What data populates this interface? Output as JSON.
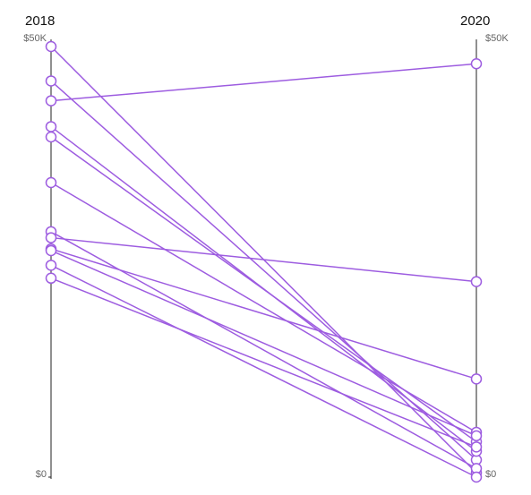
{
  "chart_data": {
    "type": "slope",
    "categories": [
      "2018",
      "2020"
    ],
    "ylim": [
      0,
      50000
    ],
    "yticks": [
      {
        "value": 0,
        "label": "$0"
      },
      {
        "value": 50000,
        "label": "$50K"
      }
    ],
    "color": "#9d5ce0",
    "series": [
      {
        "values": [
          50000,
          500
        ]
      },
      {
        "values": [
          46000,
          2000
        ]
      },
      {
        "values": [
          43700,
          48000
        ]
      },
      {
        "values": [
          40700,
          3000
        ]
      },
      {
        "values": [
          39500,
          4100
        ]
      },
      {
        "values": [
          34200,
          5200
        ]
      },
      {
        "values": [
          28500,
          1000
        ]
      },
      {
        "values": [
          27800,
          22700
        ]
      },
      {
        "values": [
          26500,
          11400
        ]
      },
      {
        "values": [
          26300,
          4800
        ]
      },
      {
        "values": [
          24600,
          0
        ]
      },
      {
        "values": [
          23100,
          3500
        ]
      }
    ]
  }
}
